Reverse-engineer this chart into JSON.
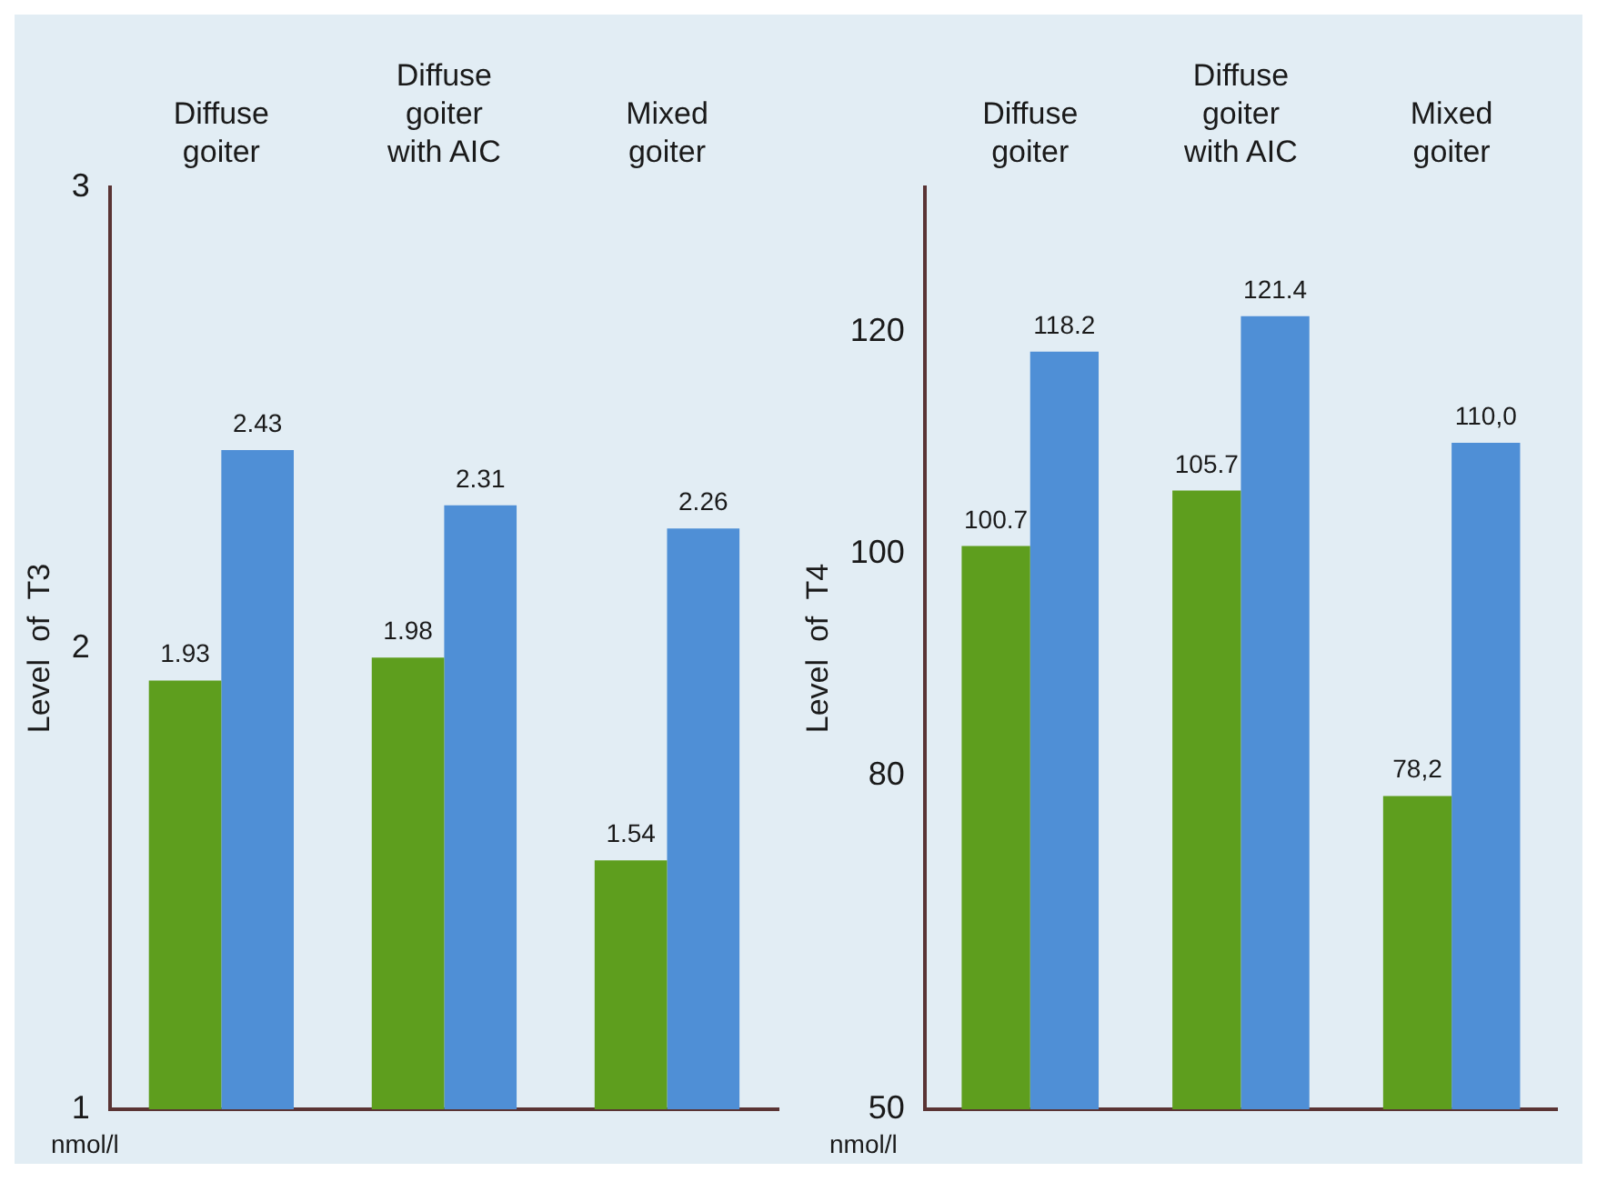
{
  "chart_data": [
    {
      "type": "bar",
      "ylabel": "Level  of  T3",
      "categories": [
        "Diffuse goiter",
        "Diffuse goiter with AIC",
        "Mixed goiter"
      ],
      "ylim": [
        1,
        3
      ],
      "yticks": [
        1,
        2,
        3
      ],
      "legend": false,
      "annotations": [
        "nmol/l"
      ],
      "series": [
        {
          "color": "#5e9e1e",
          "values": [
            1.93,
            1.98,
            1.54
          ],
          "value_labels": [
            "1.93",
            "1.98",
            "1.54"
          ]
        },
        {
          "color": "#4f8fd6",
          "values": [
            2.43,
            2.31,
            2.26
          ],
          "value_labels": [
            "2.43",
            "2.31",
            "2.26"
          ]
        }
      ]
    },
    {
      "type": "bar",
      "ylabel": "Level  of  T4",
      "categories": [
        "Diffuse goiter",
        "Diffuse goiter with AIC",
        "Mixed goiter"
      ],
      "ylim": [
        50,
        133
      ],
      "yticks": [
        50,
        80,
        100,
        120
      ],
      "legend": false,
      "annotations": [
        "nmol/l"
      ],
      "series": [
        {
          "color": "#5e9e1e",
          "values": [
            100.7,
            105.7,
            78.2
          ],
          "value_labels": [
            "100.7",
            "105.7",
            "78,2"
          ]
        },
        {
          "color": "#4f8fd6",
          "values": [
            118.2,
            121.4,
            110.0
          ],
          "value_labels": [
            "118.2",
            "121.4",
            "110,0"
          ]
        }
      ]
    }
  ]
}
